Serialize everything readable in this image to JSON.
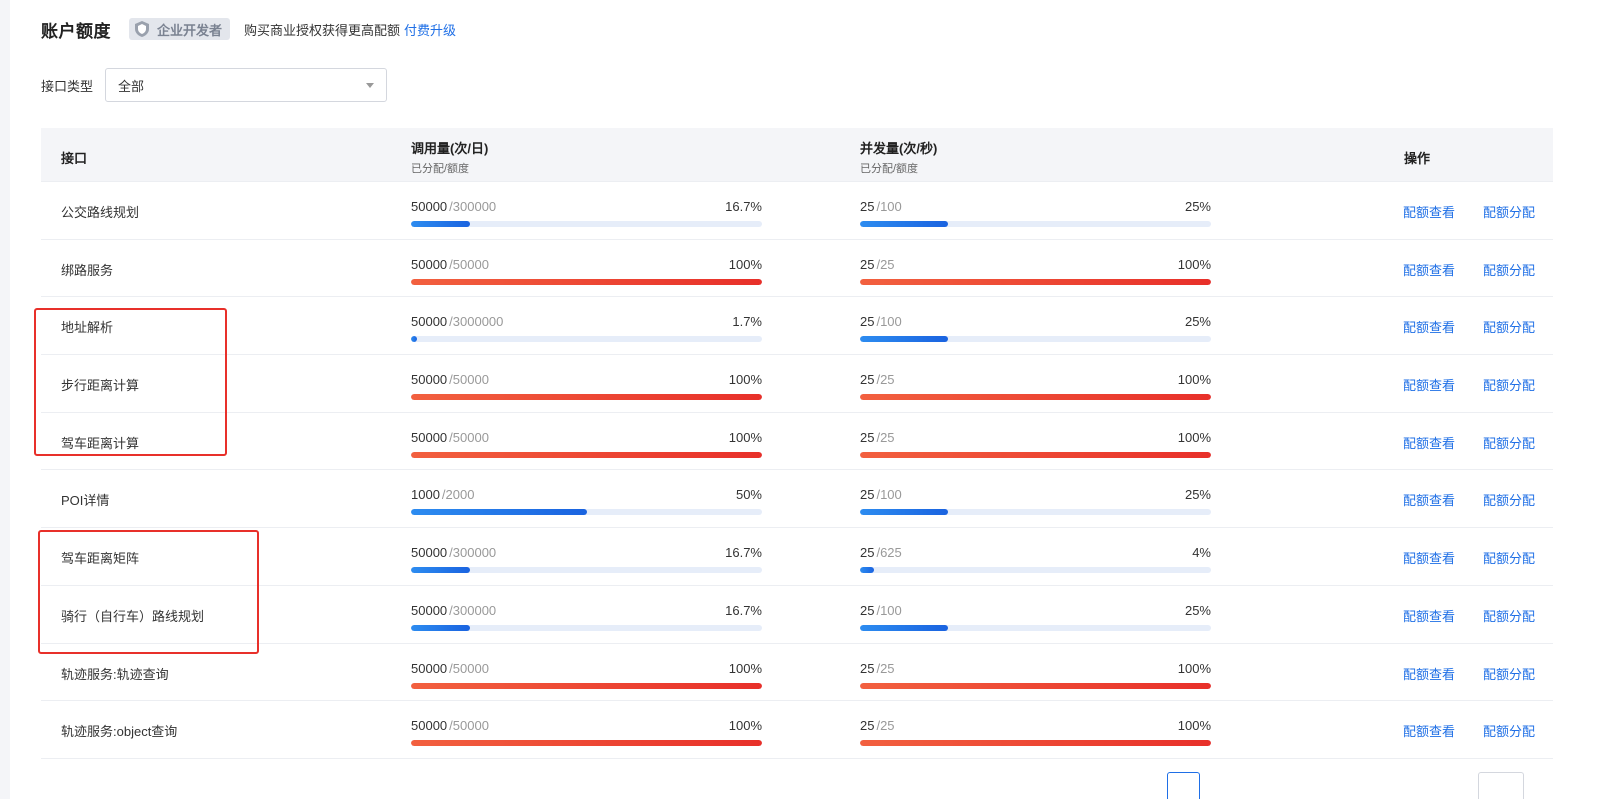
{
  "header": {
    "title": "账户额度",
    "badge_label": "企业开发者",
    "tip": "购买商业授权获得更高配额",
    "upgrade_link": "付费升级"
  },
  "filter": {
    "label": "接口类型",
    "selected": "全部"
  },
  "table": {
    "columns": {
      "api": "接口",
      "calls": "调用量(次/日)",
      "calls_sub": "已分配/额度",
      "concurrency": "并发量(次/秒)",
      "concurrency_sub": "已分配/额度",
      "ops": "操作"
    },
    "op_view": "配额查看",
    "op_assign": "配额分配",
    "rows": [
      {
        "name": "公交路线规划",
        "calls_used": "50000",
        "calls_total": "/300000",
        "calls_pct": "16.7%",
        "calls_ratio": 0.167,
        "calls_color": "blue",
        "conc_used": "25",
        "conc_total": "/100",
        "conc_pct": "25%",
        "conc_ratio": 0.25,
        "conc_color": "blue"
      },
      {
        "name": "绑路服务",
        "calls_used": "50000",
        "calls_total": "/50000",
        "calls_pct": "100%",
        "calls_ratio": 1.0,
        "calls_color": "red",
        "conc_used": "25",
        "conc_total": "/25",
        "conc_pct": "100%",
        "conc_ratio": 1.0,
        "conc_color": "red"
      },
      {
        "name": "地址解析",
        "calls_used": "50000",
        "calls_total": "/3000000",
        "calls_pct": "1.7%",
        "calls_ratio": 0.017,
        "calls_color": "blue",
        "conc_used": "25",
        "conc_total": "/100",
        "conc_pct": "25%",
        "conc_ratio": 0.25,
        "conc_color": "blue"
      },
      {
        "name": "步行距离计算",
        "calls_used": "50000",
        "calls_total": "/50000",
        "calls_pct": "100%",
        "calls_ratio": 1.0,
        "calls_color": "red",
        "conc_used": "25",
        "conc_total": "/25",
        "conc_pct": "100%",
        "conc_ratio": 1.0,
        "conc_color": "red"
      },
      {
        "name": "驾车距离计算",
        "calls_used": "50000",
        "calls_total": "/50000",
        "calls_pct": "100%",
        "calls_ratio": 1.0,
        "calls_color": "red",
        "conc_used": "25",
        "conc_total": "/25",
        "conc_pct": "100%",
        "conc_ratio": 1.0,
        "conc_color": "red"
      },
      {
        "name": "POI详情",
        "calls_used": "1000",
        "calls_total": "/2000",
        "calls_pct": "50%",
        "calls_ratio": 0.5,
        "calls_color": "blue",
        "conc_used": "25",
        "conc_total": "/100",
        "conc_pct": "25%",
        "conc_ratio": 0.25,
        "conc_color": "blue"
      },
      {
        "name": "驾车距离矩阵",
        "calls_used": "50000",
        "calls_total": "/300000",
        "calls_pct": "16.7%",
        "calls_ratio": 0.167,
        "calls_color": "blue",
        "conc_used": "25",
        "conc_total": "/625",
        "conc_pct": "4%",
        "conc_ratio": 0.04,
        "conc_color": "blue"
      },
      {
        "name": "骑行（自行车）路线规划",
        "calls_used": "50000",
        "calls_total": "/300000",
        "calls_pct": "16.7%",
        "calls_ratio": 0.167,
        "calls_color": "blue",
        "conc_used": "25",
        "conc_total": "/100",
        "conc_pct": "25%",
        "conc_ratio": 0.25,
        "conc_color": "blue"
      },
      {
        "name": "轨迹服务:轨迹查询",
        "calls_used": "50000",
        "calls_total": "/50000",
        "calls_pct": "100%",
        "calls_ratio": 1.0,
        "calls_color": "red",
        "conc_used": "25",
        "conc_total": "/25",
        "conc_pct": "100%",
        "conc_ratio": 1.0,
        "conc_color": "red"
      },
      {
        "name": "轨迹服务:object查询",
        "calls_used": "50000",
        "calls_total": "/50000",
        "calls_pct": "100%",
        "calls_ratio": 1.0,
        "calls_color": "red",
        "conc_used": "25",
        "conc_total": "/25",
        "conc_pct": "100%",
        "conc_ratio": 1.0,
        "conc_color": "red"
      }
    ]
  },
  "colors": {
    "accent": "#1f6fe6",
    "bar_blue": "#1a63e0",
    "bar_red": "#e8302a",
    "highlight_border": "#e8302a"
  },
  "icons": {
    "badge": "shield-icon",
    "select": "chevron-down-icon"
  }
}
